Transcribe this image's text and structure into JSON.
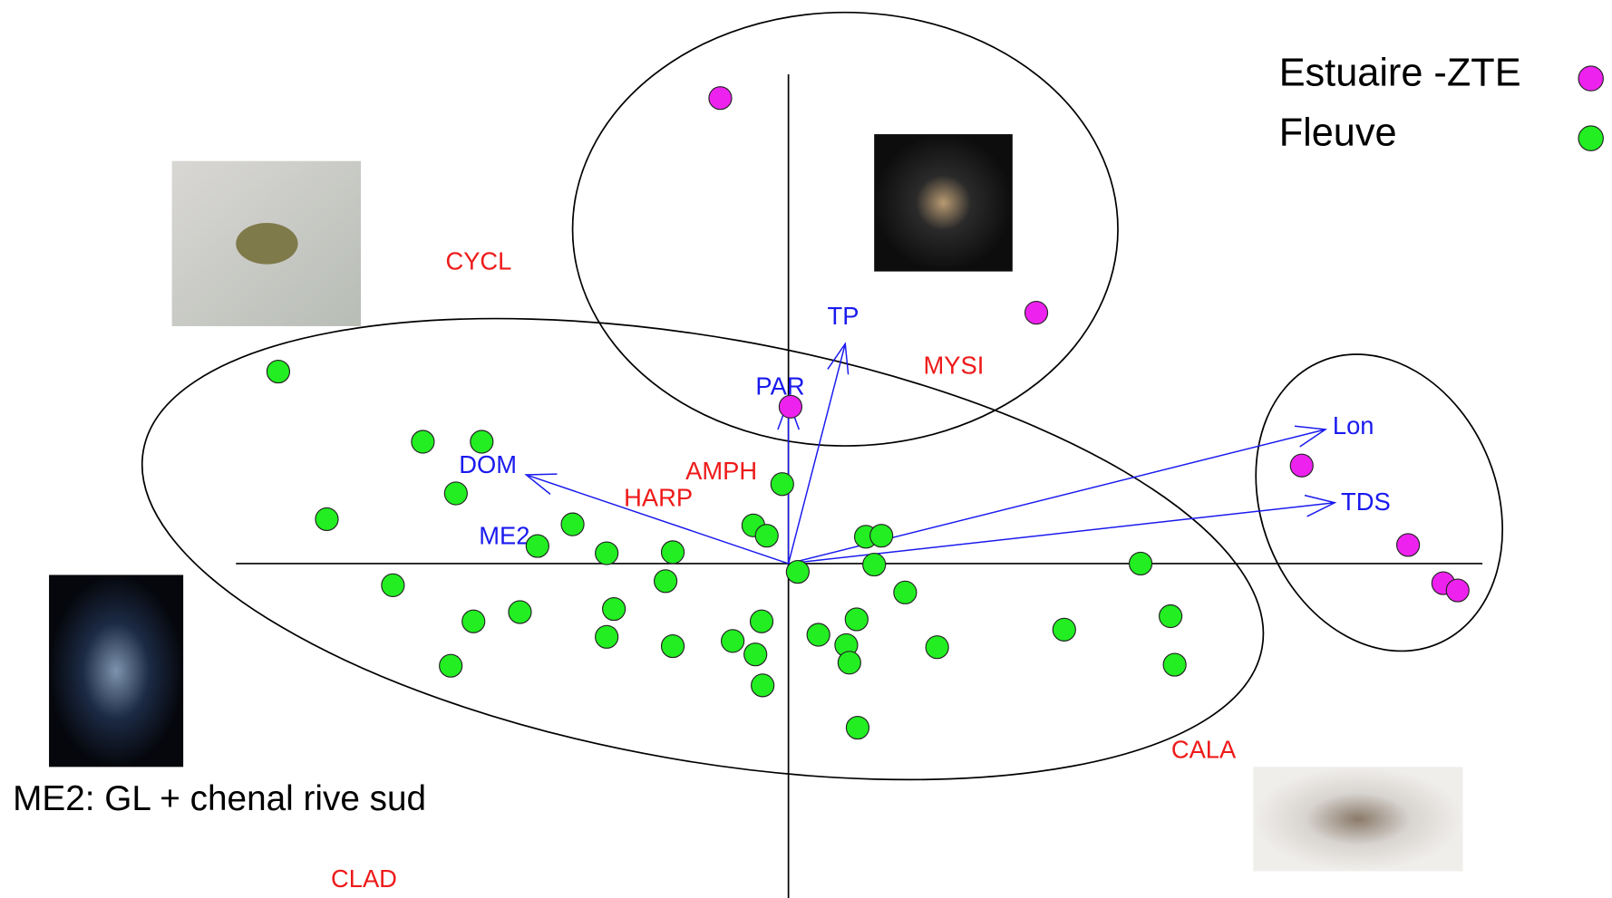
{
  "chart_data": {
    "type": "biplot",
    "annotation": "ME2: GL + chenal rive sud",
    "xlim": [
      -5.35,
      6.72
    ],
    "ylim": [
      -3.29,
      4.74
    ],
    "series": [
      {
        "name": "Estuaire -ZTE",
        "color": "#ee22ee",
        "x": [
          -0.66,
          2.4,
          0.02,
          4.97,
          6.0,
          6.34,
          6.48
        ],
        "y": [
          4.51,
          2.43,
          1.52,
          0.95,
          0.18,
          -0.19,
          -0.26
        ]
      },
      {
        "name": "Fleuve",
        "color": "#22ee22",
        "x": [
          -4.94,
          -3.54,
          -2.97,
          -3.22,
          -4.47,
          -2.09,
          -2.43,
          -1.76,
          -1.12,
          -0.06,
          -0.34,
          -0.21,
          0.75,
          0.9,
          0.09,
          0.83,
          -3.83,
          -1.19,
          1.13,
          3.41,
          -3.05,
          -2.6,
          -1.69,
          -1.76,
          -1.12,
          -0.26,
          -0.54,
          -0.32,
          0.29,
          0.66,
          0.56,
          0.59,
          1.44,
          2.67,
          3.7,
          3.74,
          -3.27,
          -0.25,
          0.67
        ],
        "y": [
          1.86,
          1.18,
          1.18,
          0.68,
          0.43,
          0.38,
          0.17,
          0.1,
          0.11,
          0.77,
          0.37,
          0.27,
          0.26,
          0.27,
          -0.08,
          -0.01,
          -0.21,
          -0.17,
          -0.28,
          0.0,
          -0.56,
          -0.47,
          -0.44,
          -0.71,
          -0.8,
          -0.56,
          -0.75,
          -0.88,
          -0.69,
          -0.54,
          -0.79,
          -0.96,
          -0.81,
          -0.64,
          -0.51,
          -0.98,
          -0.99,
          -1.18,
          -1.59
        ]
      }
    ],
    "arrows": {
      "color": "#1a1aee",
      "items": [
        {
          "label": "TP",
          "x": 0.55,
          "y": 2.13
        },
        {
          "label": "PAR",
          "x": 0.0,
          "y": 1.58
        },
        {
          "label": "DOM",
          "x": -2.54,
          "y": 0.86
        },
        {
          "label": "Lon",
          "x": 5.2,
          "y": 1.3
        },
        {
          "label": "TDS",
          "x": 5.29,
          "y": 0.59
        }
      ]
    },
    "env_points": {
      "color": "#1a1aee",
      "items": [
        {
          "label": "ME2",
          "x": -2.75,
          "y": 0.25
        }
      ]
    },
    "species": {
      "color": "#ee1a1a",
      "items": [
        {
          "label": "CYCL",
          "x": -3.0,
          "y": 2.91
        },
        {
          "label": "MYSI",
          "x": 1.6,
          "y": 1.9
        },
        {
          "label": "AMPH",
          "x": -0.65,
          "y": 0.88
        },
        {
          "label": "HARP",
          "x": -1.26,
          "y": 0.62
        },
        {
          "label": "CALA",
          "x": 4.02,
          "y": -1.82
        },
        {
          "label": "CLAD",
          "x": -4.11,
          "y": -3.07
        }
      ]
    }
  }
}
